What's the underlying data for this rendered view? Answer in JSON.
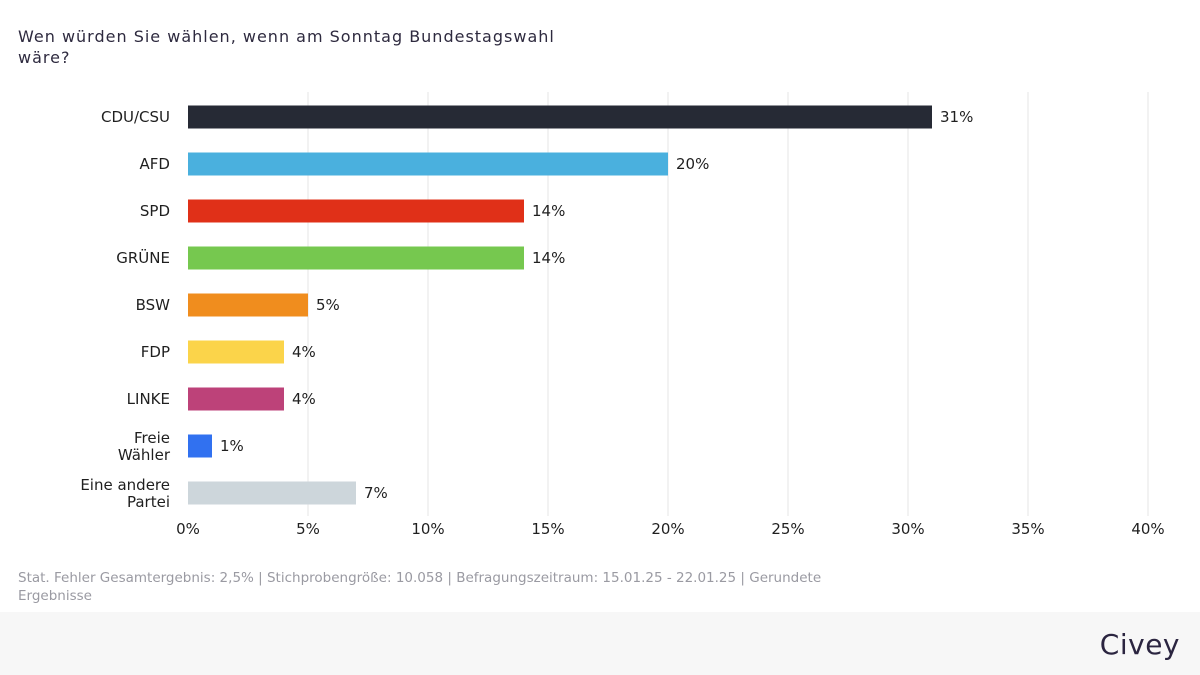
{
  "header": {
    "title": "Wen würden Sie wählen, wenn am Sonntag Bundestagswahl wäre?"
  },
  "chart_data": {
    "type": "bar",
    "orientation": "horizontal",
    "title": "Wen würden Sie wählen, wenn am Sonntag Bundestagswahl wäre?",
    "categories": [
      "CDU/CSU",
      "AFD",
      "SPD",
      "GRÜNE",
      "BSW",
      "FDP",
      "LINKE",
      "Freie Wähler",
      "Eine andere Partei"
    ],
    "values": [
      31,
      20,
      14,
      14,
      5,
      4,
      4,
      1,
      7
    ],
    "value_labels": [
      "31%",
      "20%",
      "14%",
      "14%",
      "5%",
      "4%",
      "4%",
      "1%",
      "7%"
    ],
    "colors": [
      "#262a35",
      "#4ab0de",
      "#e03018",
      "#76c84f",
      "#f08d1e",
      "#fbd44a",
      "#bd4279",
      "#3171f0",
      "#cdd6db"
    ],
    "xlim": [
      0,
      40
    ],
    "x_ticks": [
      "0%",
      "5%",
      "10%",
      "15%",
      "20%",
      "25%",
      "30%",
      "35%",
      "40%"
    ],
    "grid": true,
    "xlabel": "",
    "ylabel": ""
  },
  "footer": {
    "note": "Stat. Fehler Gesamtergebnis: 2,5% | Stichprobengröße: 10.058 | Befragungszeitraum: 15.01.25 - 22.01.25 | Gerundete Ergebnisse",
    "logo_text": "Civey"
  }
}
